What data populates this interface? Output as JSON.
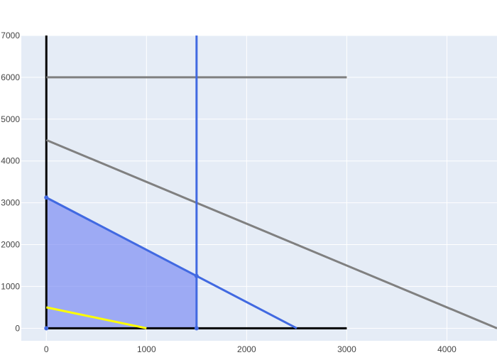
{
  "chart_data": {
    "type": "line",
    "title": "",
    "xlabel": "",
    "ylabel": "",
    "xlim": [
      -250,
      4500
    ],
    "ylim": [
      -300,
      7000
    ],
    "x_ticks": [
      0,
      1000,
      2000,
      3000,
      4000
    ],
    "y_ticks": [
      0,
      1000,
      2000,
      3000,
      4000,
      5000,
      6000,
      7000
    ],
    "grid": true,
    "legend": "none",
    "colors": {
      "plot_background": "#e5ecf6",
      "grid": "#ffffff",
      "axes": "#000000",
      "constraint_gray": "#808080",
      "constraint_blue": "#4169e1",
      "objective": "#ffff00",
      "feasible_fill": "#7f8ff4"
    },
    "feasible_region": [
      [
        0,
        0
      ],
      [
        0,
        3125
      ],
      [
        1500,
        1250
      ],
      [
        1500,
        0
      ]
    ],
    "vertices": [
      [
        0,
        0
      ],
      [
        0,
        3125
      ],
      [
        1500,
        1250
      ],
      [
        1500,
        0
      ]
    ],
    "series": [
      {
        "color": "#000000",
        "x": [
          0,
          0
        ],
        "y": [
          0,
          7000
        ]
      },
      {
        "color": "#000000",
        "x": [
          0,
          3000
        ],
        "y": [
          0,
          0
        ]
      },
      {
        "color": "#808080",
        "x": [
          0,
          3000
        ],
        "y": [
          6000,
          6000
        ]
      },
      {
        "color": "#808080",
        "x": [
          0,
          4500
        ],
        "y": [
          4500,
          0
        ]
      },
      {
        "color": "#4169e1",
        "x": [
          1500,
          1500
        ],
        "y": [
          0,
          7000
        ]
      },
      {
        "color": "#4169e1",
        "x": [
          0,
          2500
        ],
        "y": [
          3125,
          0
        ]
      },
      {
        "color": "#ffff00",
        "x": [
          0,
          1000
        ],
        "y": [
          500,
          0
        ]
      }
    ]
  }
}
